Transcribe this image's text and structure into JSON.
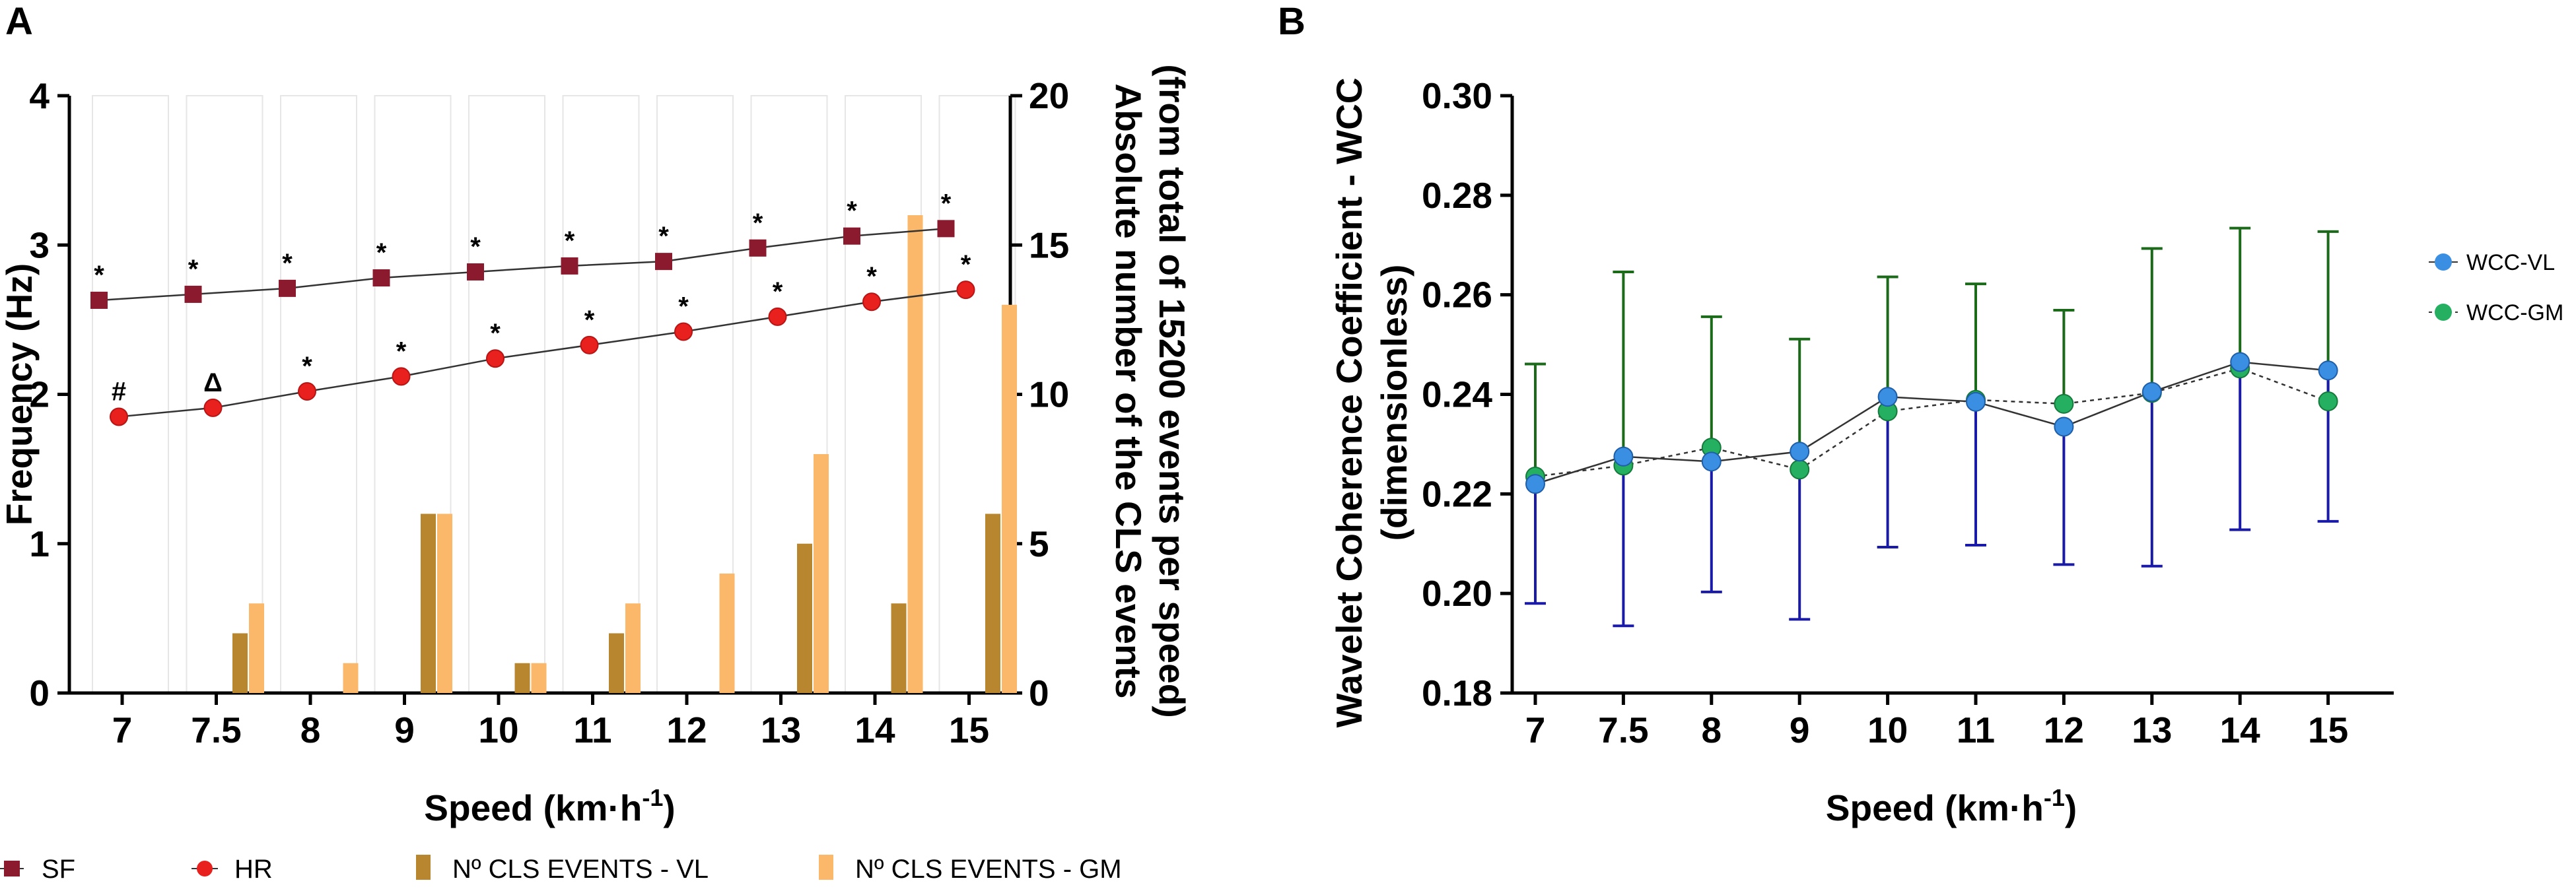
{
  "panel_a_label": "A",
  "panel_b_label": "B",
  "legend_a": [
    {
      "label": "SF",
      "color": "#8b1a2e",
      "marker": "square"
    },
    {
      "label": "HR",
      "color": "#e8201e",
      "marker": "circle"
    },
    {
      "label": "Nº CLS EVENTS - VL",
      "color": "#b8862e",
      "marker": "bar"
    },
    {
      "label": "Nº CLS EVENTS - GM",
      "color": "#fbb86a",
      "marker": "bar"
    }
  ],
  "legend_b": [
    {
      "label": "WCC-VL",
      "color": "#3a8fe3",
      "error_color": "#1a1aa8"
    },
    {
      "label": "WCC-GM",
      "color": "#24b060",
      "error_color": "#1a6a1a"
    }
  ],
  "chart_data": [
    {
      "type": "bar",
      "panel": "A",
      "categories": [
        "7",
        "7.5",
        "8",
        "9",
        "10",
        "11",
        "12",
        "13",
        "14",
        "15"
      ],
      "xlabel": "Speed (km·h",
      "xlabel_sup": "-1",
      "xlabel_end": ")",
      "ylabel": "Frequency (Hz)",
      "ylim": [
        0,
        4
      ],
      "yticks": [
        "0",
        "1",
        "2",
        "3",
        "4"
      ],
      "ylabel_right": [
        "Absolute number of the CLS events",
        "(from total of 15200 events per speed)"
      ],
      "ylim_right": [
        0,
        20
      ],
      "yticks_right": [
        "0",
        "5",
        "10",
        "15",
        "20"
      ],
      "series": [
        {
          "name": "SF",
          "type": "line",
          "values": [
            2.63,
            2.67,
            2.71,
            2.78,
            2.82,
            2.86,
            2.89,
            2.98,
            3.06,
            3.11
          ],
          "annotations": [
            "*",
            "*",
            "*",
            "*",
            "*",
            "*",
            "*",
            "*",
            "*",
            "*"
          ]
        },
        {
          "name": "HR",
          "type": "line",
          "values": [
            1.85,
            1.91,
            2.02,
            2.12,
            2.24,
            2.33,
            2.42,
            2.52,
            2.62,
            2.7
          ],
          "annotations": [
            "#",
            "Δ",
            "*",
            "*",
            "*",
            "*",
            "*",
            "*",
            "*",
            "*"
          ]
        },
        {
          "name": "Nº CLS EVENTS - VL",
          "type": "bar",
          "axis": "right",
          "values": [
            0,
            2,
            0,
            6,
            1,
            2,
            0,
            5,
            3,
            6
          ]
        },
        {
          "name": "Nº CLS EVENTS - GM",
          "type": "bar",
          "axis": "right",
          "values": [
            0,
            3,
            1,
            6,
            1,
            3,
            4,
            8,
            16,
            13
          ]
        }
      ]
    },
    {
      "type": "line",
      "panel": "B",
      "categories": [
        "7",
        "7.5",
        "8",
        "9",
        "10",
        "11",
        "12",
        "13",
        "14",
        "15"
      ],
      "xlabel": "Speed (km·h",
      "xlabel_sup": "-1",
      "xlabel_end": ")",
      "ylabel": [
        "Wavelet Coherence Coefficient - WCC",
        "(dimensionless)"
      ],
      "ylim": [
        0.18,
        0.3
      ],
      "yticks": [
        "0.18",
        "0.20",
        "0.22",
        "0.24",
        "0.26",
        "0.28",
        "0.30"
      ],
      "series": [
        {
          "name": "WCC-VL",
          "values": [
            0.222,
            0.2275,
            0.2265,
            0.2285,
            0.2395,
            0.2385,
            0.2335,
            0.2405,
            0.2465,
            0.2448
          ],
          "error_lower": [
            0.198,
            0.1935,
            0.2003,
            0.1948,
            0.2093,
            0.2097,
            0.2058,
            0.2055,
            0.2128,
            0.2145
          ]
        },
        {
          "name": "WCC-GM",
          "values": [
            0.2235,
            0.2257,
            0.2293,
            0.2249,
            0.2366,
            0.2389,
            0.2381,
            0.2403,
            0.2452,
            0.2386
          ],
          "error_upper": [
            0.2461,
            0.2646,
            0.2556,
            0.2511,
            0.2636,
            0.2622,
            0.2569,
            0.2693,
            0.2734,
            0.2727
          ]
        }
      ]
    }
  ]
}
